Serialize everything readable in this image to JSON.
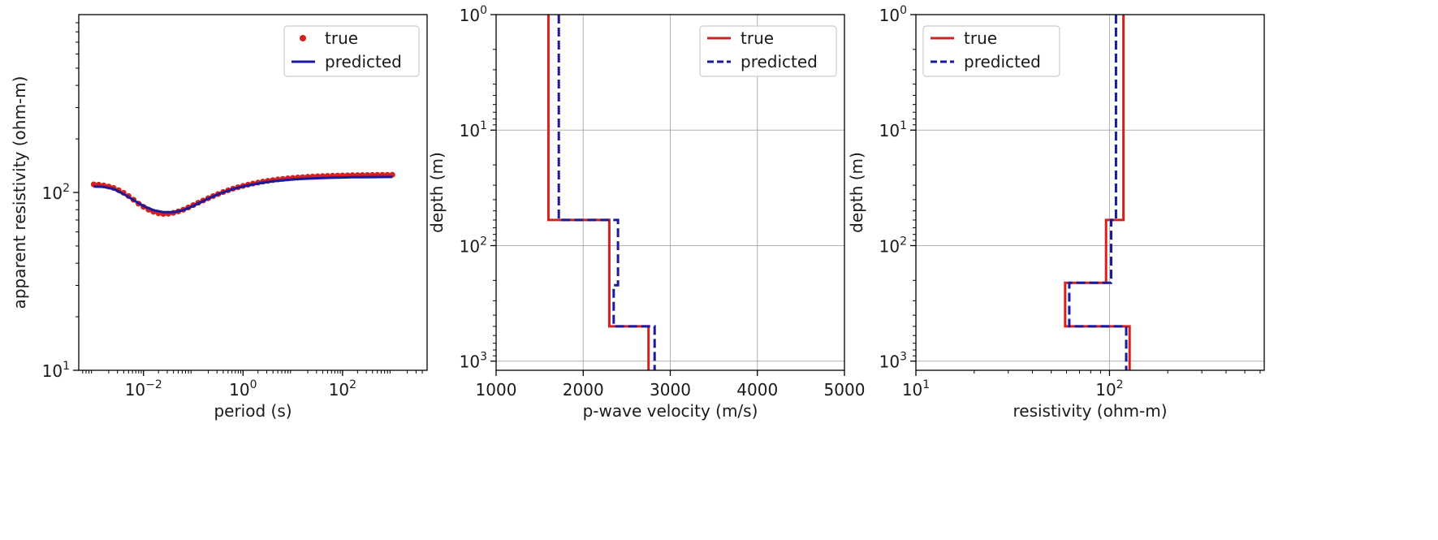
{
  "chart_data": [
    {
      "type": "scatter",
      "xlabel": "period (s)",
      "ylabel": "apparent resistivity (ohm-m)",
      "xscale": "log",
      "yscale": "log",
      "xlim": [
        0.0005,
        5000
      ],
      "ylim": [
        10,
        1000
      ],
      "grid": false,
      "legend_position": "top-right",
      "x_ticks": [
        {
          "value": 0.01,
          "base": "10",
          "exp": "−2"
        },
        {
          "value": 1,
          "base": "10",
          "exp": "0"
        },
        {
          "value": 100,
          "base": "10",
          "exp": "2"
        }
      ],
      "y_ticks": [
        {
          "value": 10,
          "base": "10",
          "exp": "1"
        },
        {
          "value": 100,
          "base": "10",
          "exp": "2"
        }
      ],
      "series": [
        {
          "name": "true",
          "style": "points",
          "color": "#d62020",
          "x": [
            0.001,
            0.00126,
            0.00158,
            0.002,
            0.00251,
            0.00316,
            0.00398,
            0.00501,
            0.00631,
            0.00794,
            0.01,
            0.0126,
            0.0158,
            0.02,
            0.0251,
            0.0316,
            0.0398,
            0.0501,
            0.0631,
            0.0794,
            0.1,
            0.126,
            0.158,
            0.2,
            0.251,
            0.316,
            0.398,
            0.501,
            0.631,
            0.794,
            1,
            1.26,
            1.58,
            2,
            2.51,
            3.16,
            3.98,
            5.01,
            6.31,
            7.94,
            10,
            12.6,
            15.8,
            20,
            25.1,
            31.6,
            39.8,
            50.1,
            63.1,
            79.4,
            100,
            126,
            158,
            200,
            251,
            316,
            398,
            501,
            631,
            794,
            1000
          ],
          "y": [
            111,
            110.5,
            109.5,
            108,
            106,
            103,
            99.5,
            95.5,
            91,
            86.5,
            83,
            80,
            77.8,
            76.3,
            75.7,
            75.9,
            76.8,
            78.2,
            80,
            82.3,
            84.9,
            87.5,
            90.1,
            92.8,
            95.4,
            98,
            100.5,
            102.8,
            105,
            107,
            108.8,
            110.6,
            112.2,
            113.6,
            115,
            116.2,
            117.3,
            118.3,
            119.2,
            120,
            120.7,
            121.3,
            121.9,
            122.4,
            122.8,
            123.2,
            123.6,
            123.9,
            124.2,
            124.4,
            124.6,
            124.8,
            125,
            125.1,
            125.2,
            125.3,
            125.4,
            125.5,
            125.6,
            125.6,
            125.7
          ]
        },
        {
          "name": "predicted",
          "style": "line",
          "color": "#1a1a9c",
          "x": [
            0.001,
            0.00158,
            0.00251,
            0.00398,
            0.00631,
            0.01,
            0.0158,
            0.0251,
            0.0398,
            0.0631,
            0.1,
            0.158,
            0.251,
            0.398,
            0.631,
            1,
            1.58,
            2.51,
            3.98,
            6.31,
            10,
            15.8,
            25.1,
            39.8,
            63.1,
            100,
            158,
            251,
            398,
            631,
            1000
          ],
          "y": [
            108,
            107.5,
            104.5,
            98,
            90.5,
            84,
            79.5,
            77.5,
            77.5,
            79.5,
            84,
            89.5,
            95,
            100,
            104.5,
            108,
            111,
            113.5,
            115.5,
            117,
            118.3,
            119.3,
            120,
            120.6,
            121,
            121.4,
            121.7,
            121.9,
            122,
            122.1,
            122.2
          ]
        }
      ]
    },
    {
      "type": "line",
      "xlabel": "p-wave velocity (m/s)",
      "ylabel": "depth (m)",
      "xscale": "linear",
      "yscale": "log",
      "yinverted": true,
      "xlim": [
        1000,
        5000
      ],
      "ylim": [
        1,
        1200
      ],
      "grid": true,
      "legend_position": "top-right",
      "x_ticks": [
        {
          "value": 1000,
          "label": "1000"
        },
        {
          "value": 2000,
          "label": "2000"
        },
        {
          "value": 3000,
          "label": "3000"
        },
        {
          "value": 4000,
          "label": "4000"
        },
        {
          "value": 5000,
          "label": "5000"
        }
      ],
      "y_ticks": [
        {
          "value": 1,
          "base": "10",
          "exp": "0"
        },
        {
          "value": 10,
          "base": "10",
          "exp": "1"
        },
        {
          "value": 100,
          "base": "10",
          "exp": "2"
        },
        {
          "value": 1000,
          "base": "10",
          "exp": "3"
        }
      ],
      "series": [
        {
          "name": "true",
          "style": "solid",
          "color": "#d62020",
          "x": [
            1600,
            1600,
            2300,
            2300,
            2750,
            2750
          ],
          "y": [
            1,
            60,
            60,
            500,
            500,
            1200
          ]
        },
        {
          "name": "predicted",
          "style": "dashed",
          "color": "#1a1a9c",
          "x": [
            1720,
            1720,
            2400,
            2400,
            2350,
            2350,
            2820,
            2820
          ],
          "y": [
            1,
            60,
            60,
            220,
            220,
            500,
            500,
            1200
          ]
        }
      ]
    },
    {
      "type": "line",
      "xlabel": "resistivity (ohm-m)",
      "ylabel": "depth (m)",
      "xscale": "log",
      "yscale": "log",
      "yinverted": true,
      "xlim": [
        10,
        630
      ],
      "ylim": [
        1,
        1200
      ],
      "grid": true,
      "legend_position": "top-left",
      "x_ticks": [
        {
          "value": 10,
          "base": "10",
          "exp": "1"
        },
        {
          "value": 100,
          "base": "10",
          "exp": "2"
        }
      ],
      "y_ticks": [
        {
          "value": 1,
          "base": "10",
          "exp": "0"
        },
        {
          "value": 10,
          "base": "10",
          "exp": "1"
        },
        {
          "value": 100,
          "base": "10",
          "exp": "2"
        },
        {
          "value": 1000,
          "base": "10",
          "exp": "3"
        }
      ],
      "series": [
        {
          "name": "true",
          "style": "solid",
          "color": "#d62020",
          "x": [
            118,
            118,
            96,
            96,
            59,
            59,
            127,
            127
          ],
          "y": [
            1,
            60,
            60,
            210,
            210,
            500,
            500,
            1200
          ]
        },
        {
          "name": "predicted",
          "style": "dashed",
          "color": "#1a1a9c",
          "x": [
            108,
            108,
            102,
            102,
            62,
            62,
            122,
            122
          ],
          "y": [
            1,
            60,
            60,
            210,
            210,
            500,
            500,
            1200
          ]
        }
      ]
    }
  ]
}
